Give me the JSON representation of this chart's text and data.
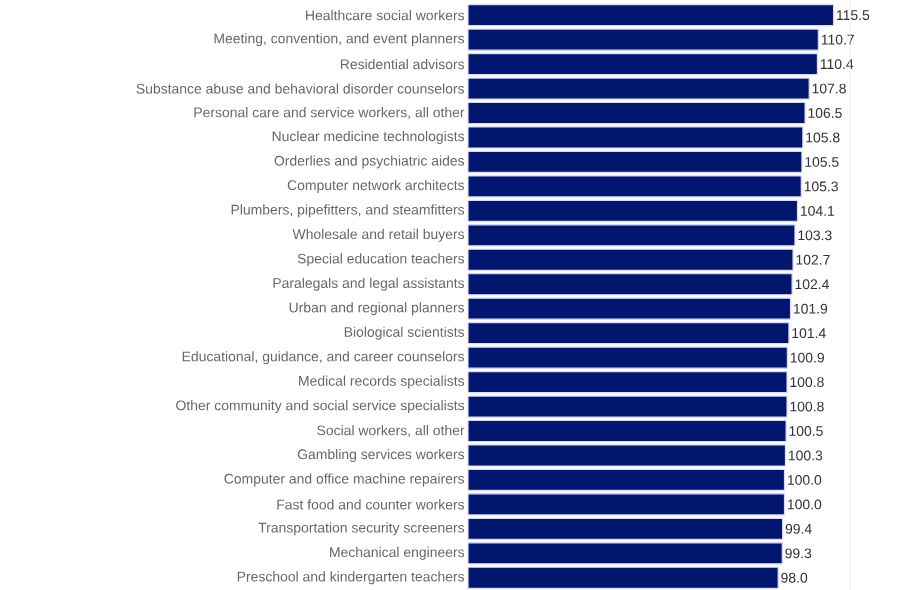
{
  "chart_data": {
    "type": "bar",
    "orientation": "horizontal",
    "value_labels": [
      "115.5",
      "110.7",
      "110.4",
      "107.8",
      "106.5",
      "105.8",
      "105.5",
      "105.3",
      "104.1",
      "103.3",
      "102.7",
      "102.4",
      "101.9",
      "101.4",
      "100.9",
      "100.8",
      "100.8",
      "100.5",
      "100.3",
      "100.0",
      "100.0",
      "99.4",
      "99.3",
      "98.0"
    ],
    "color": "#00166f",
    "categories": [
      "Healthcare social workers",
      "Meeting, convention, and event planners",
      "Residential advisors",
      "Substance abuse and behavioral disorder counselors",
      "Personal care and service workers, all other",
      "Nuclear medicine technologists",
      "Orderlies and psychiatric aides",
      "Computer network architects",
      "Plumbers, pipefitters, and steamfitters",
      "Wholesale and retail buyers",
      "Special education teachers",
      "Paralegals and legal assistants",
      "Urban and regional planners",
      "Biological scientists",
      "Educational, guidance, and career counselors",
      "Medical records specialists",
      "Other community and social service specialists",
      "Social workers, all other",
      "Gambling services workers",
      "Computer and office machine repairers",
      "Fast food and counter workers",
      "Transportation security screeners",
      "Mechanical engineers",
      "Preschool and kindergarten teachers"
    ],
    "values": [
      115.5,
      110.7,
      110.4,
      107.8,
      106.5,
      105.8,
      105.5,
      105.3,
      104.1,
      103.3,
      102.7,
      102.4,
      101.9,
      101.4,
      100.9,
      100.8,
      100.8,
      100.5,
      100.3,
      100.0,
      100.0,
      99.4,
      99.3,
      98.0
    ]
  }
}
